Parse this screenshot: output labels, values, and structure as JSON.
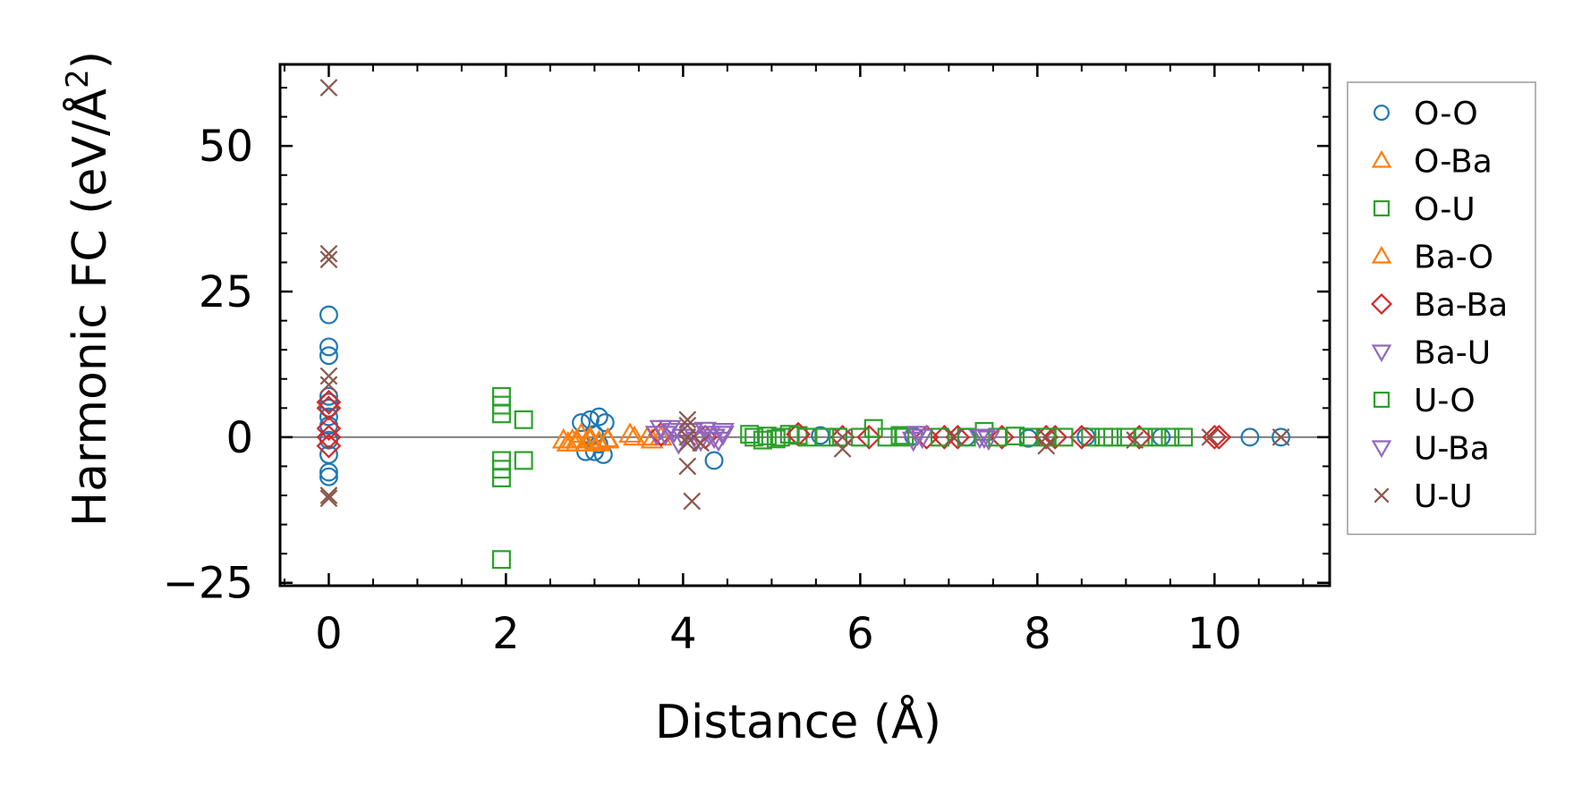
{
  "chart_data": {
    "type": "scatter",
    "xlabel": "Distance (Å)",
    "ylabel": "Harmonic FC (eV/Å²)",
    "ylabel_main": "Harmonic FC (eV/Å",
    "ylabel_sup": "2",
    "ylabel_tail": ")",
    "xlim": [
      -0.55,
      11.3
    ],
    "ylim": [
      -25.5,
      64
    ],
    "xticks": [
      0,
      2,
      4,
      6,
      8,
      10
    ],
    "xtick_labels": [
      "0",
      "2",
      "4",
      "6",
      "8",
      "10"
    ],
    "yticks": [
      -25,
      0,
      25,
      50
    ],
    "ytick_labels": [
      "−25",
      "0",
      "25",
      "50"
    ],
    "grid": false,
    "zero_line": true,
    "legend_position": "right-outside",
    "series": [
      {
        "name": "O-O",
        "marker": "circle",
        "color": "#1f77b4",
        "points": [
          [
            0,
            21
          ],
          [
            0,
            15.5
          ],
          [
            0,
            14
          ],
          [
            0,
            7
          ],
          [
            0,
            6
          ],
          [
            0,
            5
          ],
          [
            0,
            3.5
          ],
          [
            0,
            2
          ],
          [
            0,
            -0.5
          ],
          [
            0,
            -3
          ],
          [
            0,
            -6
          ],
          [
            0,
            -6.8
          ],
          [
            2.85,
            2.5
          ],
          [
            2.9,
            -2.5
          ],
          [
            2.95,
            3
          ],
          [
            3.0,
            -2.5
          ],
          [
            3.05,
            3.5
          ],
          [
            3.1,
            -3
          ],
          [
            3.12,
            2.5
          ],
          [
            3.0,
            0.5
          ],
          [
            3.05,
            -1.2
          ],
          [
            4.35,
            -4
          ],
          [
            5.55,
            0.3
          ],
          [
            6.6,
            0.2
          ],
          [
            7.2,
            0
          ],
          [
            7.9,
            -0.2
          ],
          [
            8.55,
            0.1
          ],
          [
            9.4,
            0
          ],
          [
            10.4,
            0
          ],
          [
            10.75,
            0
          ]
        ]
      },
      {
        "name": "O-Ba",
        "marker": "triangle-up",
        "color": "#ff7f0e",
        "points": [
          [
            2.7,
            -1
          ],
          [
            2.75,
            -0.5
          ],
          [
            2.8,
            -1
          ],
          [
            2.85,
            0.5
          ],
          [
            2.9,
            -1
          ],
          [
            2.95,
            -0.5
          ],
          [
            3.05,
            -1
          ],
          [
            3.15,
            -0.5
          ],
          [
            3.45,
            0
          ],
          [
            3.65,
            -0.5
          ],
          [
            3.75,
            0
          ]
        ]
      },
      {
        "name": "O-U",
        "marker": "square",
        "color": "#2ca02c",
        "points": [
          [
            1.95,
            7
          ],
          [
            1.95,
            5.5
          ],
          [
            1.95,
            4
          ],
          [
            1.95,
            -4
          ],
          [
            1.95,
            -5.5
          ],
          [
            1.95,
            -7
          ],
          [
            1.95,
            -21
          ],
          [
            2.2,
            3
          ],
          [
            2.2,
            -4
          ],
          [
            4.75,
            0.5
          ],
          [
            4.9,
            -0.5
          ],
          [
            5.1,
            0
          ],
          [
            5.3,
            0.3
          ],
          [
            6.15,
            1.5
          ],
          [
            6.5,
            0
          ],
          [
            7.4,
            1
          ],
          [
            7.9,
            0
          ],
          [
            8.6,
            0
          ],
          [
            8.85,
            0
          ],
          [
            9.35,
            0
          ],
          [
            9.65,
            0
          ]
        ]
      },
      {
        "name": "Ba-O",
        "marker": "triangle-up",
        "color": "#ff7f0e",
        "points": [
          [
            2.65,
            -0.5
          ],
          [
            2.7,
            -1
          ],
          [
            2.8,
            -0.5
          ],
          [
            2.95,
            0
          ],
          [
            3.05,
            -0.8
          ],
          [
            3.15,
            -0.3
          ],
          [
            3.4,
            0.5
          ],
          [
            3.6,
            0
          ]
        ]
      },
      {
        "name": "Ba-Ba",
        "marker": "diamond",
        "color": "#d62728",
        "points": [
          [
            0,
            6
          ],
          [
            0,
            5
          ],
          [
            0,
            1.5
          ],
          [
            0,
            0
          ],
          [
            0,
            -1.5
          ],
          [
            3.75,
            0.5
          ],
          [
            4.25,
            0
          ],
          [
            5.3,
            0.5
          ],
          [
            5.8,
            0
          ],
          [
            6.1,
            0
          ],
          [
            6.75,
            0
          ],
          [
            6.95,
            0
          ],
          [
            7.1,
            0
          ],
          [
            7.6,
            0
          ],
          [
            8.1,
            0
          ],
          [
            8.2,
            0
          ],
          [
            8.5,
            0
          ],
          [
            9.15,
            0
          ],
          [
            10.0,
            0
          ],
          [
            10.05,
            0
          ]
        ]
      },
      {
        "name": "Ba-U",
        "marker": "triangle-down",
        "color": "#9467bd",
        "points": [
          [
            3.75,
            1.5
          ],
          [
            3.8,
            0.5
          ],
          [
            3.9,
            1
          ],
          [
            3.95,
            -1
          ],
          [
            4.1,
            1
          ],
          [
            4.2,
            -0.5
          ],
          [
            4.3,
            0.5
          ],
          [
            4.4,
            -0.5
          ],
          [
            4.45,
            0.5
          ],
          [
            6.6,
            -0.5
          ],
          [
            6.7,
            0
          ],
          [
            7.35,
            0
          ],
          [
            7.45,
            -0.3
          ]
        ]
      },
      {
        "name": "U-O",
        "marker": "square",
        "color": "#2ca02c",
        "points": [
          [
            4.8,
            0
          ],
          [
            4.95,
            0.2
          ],
          [
            5.05,
            -0.3
          ],
          [
            5.2,
            0.5
          ],
          [
            5.4,
            0
          ],
          [
            5.6,
            0
          ],
          [
            5.75,
            0
          ],
          [
            6.0,
            0
          ],
          [
            6.3,
            0
          ],
          [
            6.45,
            0.3
          ],
          [
            6.9,
            0
          ],
          [
            7.2,
            0
          ],
          [
            7.55,
            0
          ],
          [
            7.75,
            0.2
          ],
          [
            8.1,
            0
          ],
          [
            8.3,
            0
          ],
          [
            8.75,
            0
          ],
          [
            9.0,
            0
          ],
          [
            9.2,
            0
          ],
          [
            9.5,
            0
          ]
        ]
      },
      {
        "name": "U-Ba",
        "marker": "triangle-down",
        "color": "#9467bd",
        "points": [
          [
            3.7,
            0.5
          ],
          [
            3.85,
            1.5
          ],
          [
            4.0,
            0
          ],
          [
            4.15,
            -0.5
          ],
          [
            4.25,
            1.2
          ],
          [
            4.35,
            0
          ],
          [
            4.45,
            1
          ],
          [
            6.65,
            0.5
          ],
          [
            7.4,
            0
          ]
        ]
      },
      {
        "name": "U-U",
        "marker": "cross",
        "color": "#8c564b",
        "points": [
          [
            0,
            60
          ],
          [
            0,
            31.5
          ],
          [
            0,
            30.5
          ],
          [
            0,
            10.5
          ],
          [
            0,
            9
          ],
          [
            0,
            -10
          ],
          [
            0,
            -10.5
          ],
          [
            4.05,
            3
          ],
          [
            4.05,
            2
          ],
          [
            4.05,
            0
          ],
          [
            4.05,
            -1
          ],
          [
            4.05,
            -5
          ],
          [
            4.1,
            -11
          ],
          [
            4.2,
            -1
          ],
          [
            5.8,
            -2
          ],
          [
            5.8,
            0
          ],
          [
            7.05,
            0
          ],
          [
            8.1,
            0
          ],
          [
            8.1,
            -1.5
          ],
          [
            9.1,
            -0.5
          ],
          [
            9.95,
            0
          ],
          [
            10.75,
            0
          ]
        ]
      }
    ]
  }
}
